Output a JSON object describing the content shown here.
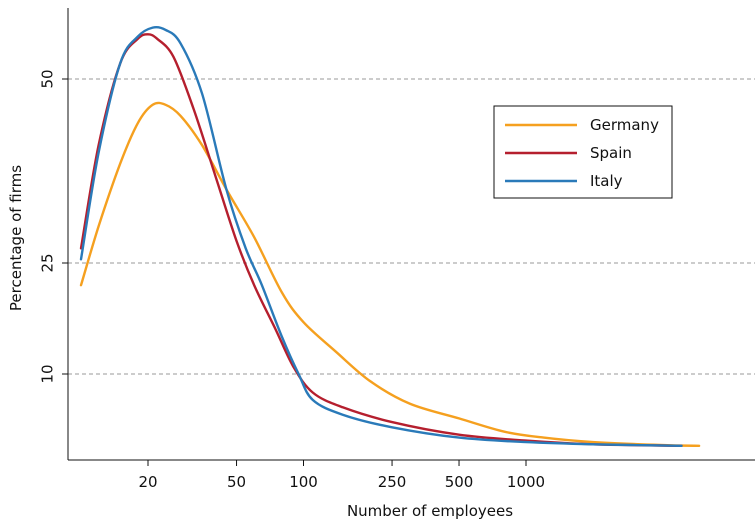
{
  "chart_data": {
    "type": "line",
    "xlabel": "Number of employees",
    "ylabel": "Percentage of firms",
    "xscale": "log",
    "xticks": [
      20,
      50,
      100,
      250,
      500,
      1000
    ],
    "xtick_labels": [
      "20",
      "50",
      "100",
      "250",
      "500",
      "1000"
    ],
    "yticks": [
      10,
      25,
      50
    ],
    "ytick_labels": [
      "10",
      "25",
      "50"
    ],
    "grid": "horizontal dashed at y ticks",
    "legend": {
      "position": "top-right",
      "entries": [
        "Germany",
        "Spain",
        "Italy"
      ]
    },
    "series": [
      {
        "name": "Germany",
        "color": "#f5a01f",
        "points": [
          [
            10,
            22
          ],
          [
            12,
            30
          ],
          [
            15,
            38.5
          ],
          [
            18,
            44
          ],
          [
            21,
            46.5
          ],
          [
            24,
            46.5
          ],
          [
            28,
            45
          ],
          [
            35,
            41
          ],
          [
            45,
            35
          ],
          [
            60,
            28.5
          ],
          [
            80,
            21
          ],
          [
            100,
            17
          ],
          [
            140,
            13
          ],
          [
            200,
            9
          ],
          [
            300,
            6
          ],
          [
            500,
            4
          ],
          [
            800,
            2.2
          ],
          [
            1200,
            1.4
          ],
          [
            2000,
            0.8
          ],
          [
            4000,
            0.4
          ],
          [
            6000,
            0.3
          ]
        ]
      },
      {
        "name": "Spain",
        "color": "#b51f2e",
        "points": [
          [
            10,
            27
          ],
          [
            12,
            41
          ],
          [
            15,
            53.5
          ],
          [
            18,
            59
          ],
          [
            20,
            60
          ],
          [
            22,
            59
          ],
          [
            26,
            55
          ],
          [
            32,
            46
          ],
          [
            40,
            37
          ],
          [
            50,
            28
          ],
          [
            60,
            22
          ],
          [
            75,
            16
          ],
          [
            90,
            11
          ],
          [
            110,
            7.5
          ],
          [
            150,
            5.5
          ],
          [
            250,
            3.5
          ],
          [
            500,
            1.8
          ],
          [
            1000,
            1
          ],
          [
            2000,
            0.5
          ],
          [
            5000,
            0.3
          ]
        ]
      },
      {
        "name": "Italy",
        "color": "#2a7ab9",
        "points": [
          [
            10,
            25.5
          ],
          [
            12,
            40
          ],
          [
            15,
            53.5
          ],
          [
            18,
            59.5
          ],
          [
            21,
            61.5
          ],
          [
            24,
            61
          ],
          [
            28,
            58
          ],
          [
            35,
            48
          ],
          [
            45,
            35
          ],
          [
            55,
            27
          ],
          [
            65,
            22
          ],
          [
            80,
            15
          ],
          [
            95,
            10
          ],
          [
            110,
            6.5
          ],
          [
            150,
            4.5
          ],
          [
            250,
            2.8
          ],
          [
            500,
            1.4
          ],
          [
            1000,
            0.8
          ],
          [
            2000,
            0.5
          ],
          [
            5000,
            0.3
          ]
        ]
      }
    ]
  }
}
